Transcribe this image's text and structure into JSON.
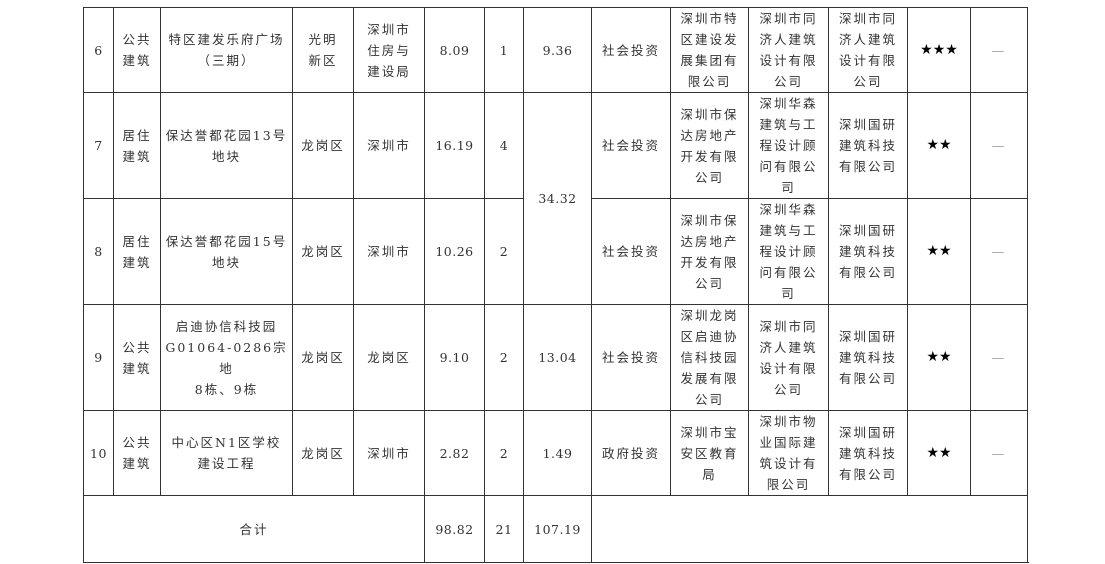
{
  "rows": [
    {
      "no": "6",
      "type": "公共\n建筑",
      "name": "特区建发乐府广场\n（三期）",
      "district": "光明\n新区",
      "authority": "深圳市\n住房与\n建设局",
      "area": "8.09",
      "count": "1",
      "invest": "9.36",
      "invest_type": "社会投资",
      "developer": "深圳市特\n区建设发\n展集团有\n限公司",
      "designer": "深圳市同\n济人建筑\n设计有限\n公司",
      "consultant": "深圳市同\n济人建筑\n设计有限\n公司",
      "stars": "★★★",
      "note": "—"
    },
    {
      "no": "7",
      "type": "居住\n建筑",
      "name": "保达誉都花园13号\n地块",
      "district": "龙岗区",
      "authority": "深圳市",
      "area": "16.19",
      "count": "4",
      "invest": "34.32",
      "invest_type": "社会投资",
      "developer": "深圳市保\n达房地产\n开发有限\n公司",
      "designer": "深圳华森\n建筑与工\n程设计顾\n问有限公\n司",
      "consultant": "深圳国研\n建筑科技\n有限公司",
      "stars": "★★",
      "note": "—"
    },
    {
      "no": "8",
      "type": "居住\n建筑",
      "name": "保达誉都花园15号\n地块",
      "district": "龙岗区",
      "authority": "深圳市",
      "area": "10.26",
      "count": "2",
      "invest": null,
      "invest_type": "社会投资",
      "developer": "深圳市保\n达房地产\n开发有限\n公司",
      "designer": "深圳华森\n建筑与工\n程设计顾\n问有限公\n司",
      "consultant": "深圳国研\n建筑科技\n有限公司",
      "stars": "★★",
      "note": "—"
    },
    {
      "no": "9",
      "type": "公共\n建筑",
      "name": "启迪协信科技园\nG01064-0286宗地\n8栋、9栋",
      "district": "龙岗区",
      "authority": "龙岗区",
      "area": "9.10",
      "count": "2",
      "invest": "13.04",
      "invest_type": "社会投资",
      "developer": "深圳龙岗\n区启迪协\n信科技园\n发展有限\n公司",
      "designer": "深圳市同\n济人建筑\n设计有限\n公司",
      "consultant": "深圳国研\n建筑科技\n有限公司",
      "stars": "★★",
      "note": "—"
    },
    {
      "no": "10",
      "type": "公共\n建筑",
      "name": "中心区N1区学校\n建设工程",
      "district": "龙岗区",
      "authority": "深圳市",
      "area": "2.82",
      "count": "2",
      "invest": "1.49",
      "invest_type": "政府投资",
      "developer": "深圳市宝\n安区教育\n局",
      "designer": "深圳市物\n业国际建\n筑设计有\n限公司",
      "consultant": "深圳国研\n建筑科技\n有限公司",
      "stars": "★★",
      "note": "—"
    }
  ],
  "total": {
    "label": "合计",
    "area": "98.82",
    "count": "21",
    "invest": "107.19"
  }
}
